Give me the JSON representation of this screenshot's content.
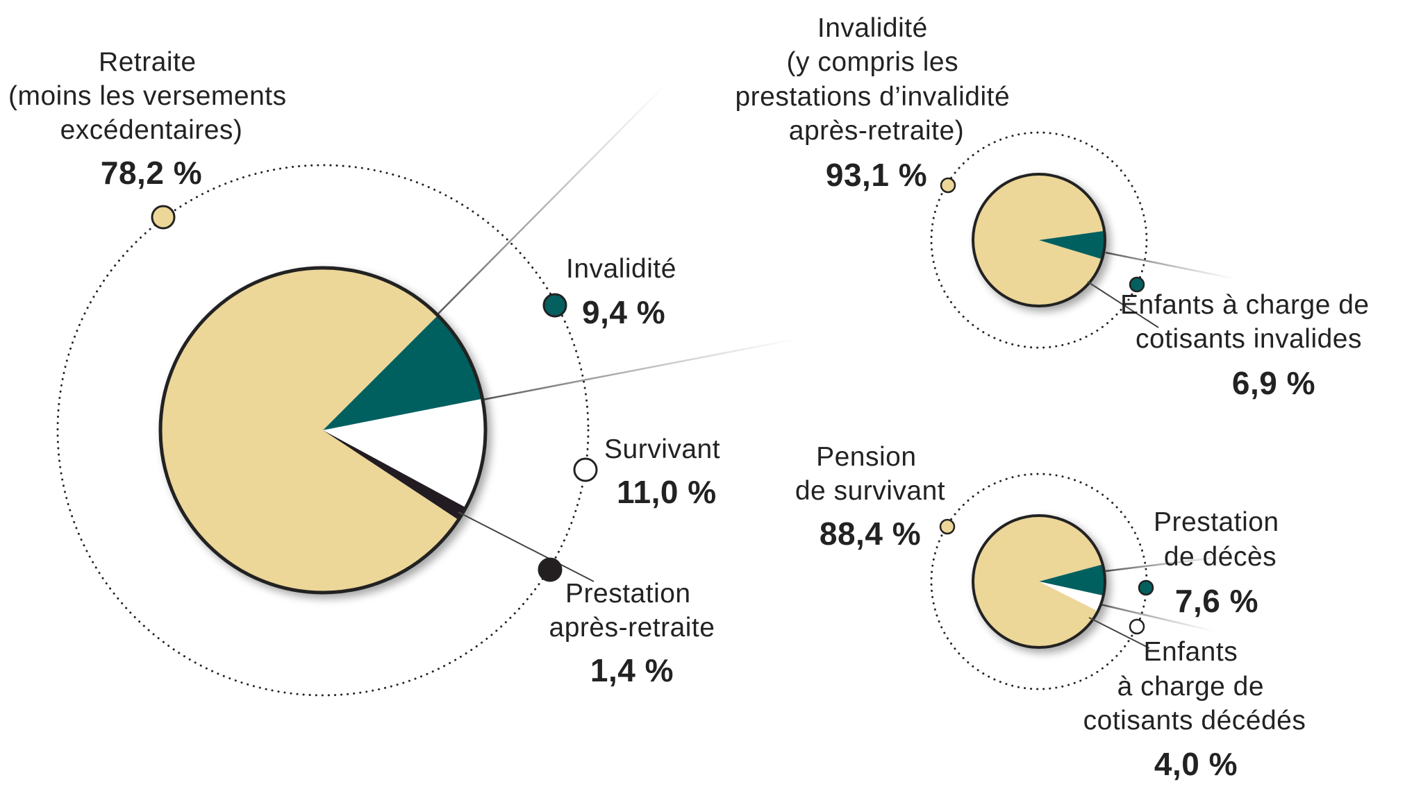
{
  "colors": {
    "retirement": "#ecd698",
    "teal": "#04605f",
    "survivor": "#ffffff",
    "post_retirement": "#231f20",
    "outline": "#222222"
  },
  "chart_data": [
    {
      "type": "pie",
      "slices": [
        {
          "label_lines": [
            "Retraite",
            "(moins les versements",
            "excédentaires)"
          ],
          "value_text": "78,2 %",
          "value": 78.2,
          "color": "#ecd698"
        },
        {
          "label_lines": [
            "Invalidité"
          ],
          "value_text": "9,4 %",
          "value": 9.4,
          "color": "#04605f"
        },
        {
          "label_lines": [
            "Survivant"
          ],
          "value_text": "11,0 %",
          "value": 11.0,
          "color": "#ffffff"
        },
        {
          "label_lines": [
            "Prestation",
            "après-retraite"
          ],
          "value_text": "1,4 %",
          "value": 1.4,
          "color": "#231f20"
        }
      ]
    },
    {
      "type": "pie",
      "slices": [
        {
          "label_lines": [
            "Invalidité",
            "(y compris les",
            "prestations d’invalidité",
            "après-retraite)"
          ],
          "value_text": "93,1 %",
          "value": 93.1,
          "color": "#ecd698"
        },
        {
          "label_lines": [
            "Enfants à charge de",
            "cotisants invalides"
          ],
          "value_text": "6,9 %",
          "value": 6.9,
          "color": "#04605f"
        }
      ]
    },
    {
      "type": "pie",
      "slices": [
        {
          "label_lines": [
            "Pension",
            "de survivant"
          ],
          "value_text": "88,4 %",
          "value": 88.4,
          "color": "#ecd698"
        },
        {
          "label_lines": [
            "Prestation",
            "de décès"
          ],
          "value_text": "7,6 %",
          "value": 7.6,
          "color": "#04605f"
        },
        {
          "label_lines": [
            "Enfants",
            "à charge de",
            "cotisants décédés"
          ],
          "value_text": "4,0 %",
          "value": 4.0,
          "color": "#ffffff"
        }
      ]
    }
  ]
}
